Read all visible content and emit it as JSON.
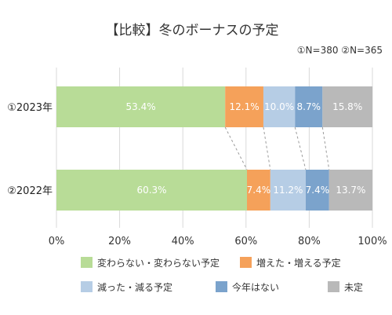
{
  "chart_data": {
    "type": "bar",
    "orientation": "horizontal",
    "stacked": true,
    "title": "【比較】冬のボーナスの予定",
    "subtitle": "①N=380  ②N=365",
    "categories": [
      "①2023年",
      "②2022年"
    ],
    "series": [
      {
        "name": "変わらない・変わらない予定",
        "values": [
          53.4,
          60.3
        ],
        "labels": [
          "53.4%",
          "60.3%"
        ],
        "color": "#b8dc97"
      },
      {
        "name": "増えた・増える予定",
        "values": [
          12.1,
          7.4
        ],
        "labels": [
          "12.1%",
          "7.4%"
        ],
        "color": "#f5a15a"
      },
      {
        "name": "減った・減る予定",
        "values": [
          10.0,
          11.2
        ],
        "labels": [
          "10.0%",
          "11.2%"
        ],
        "color": "#b6cde5"
      },
      {
        "name": "今年はない",
        "values": [
          8.7,
          7.4
        ],
        "labels": [
          "8.7%",
          "7.4%"
        ],
        "color": "#7ba3cc"
      },
      {
        "name": "未定",
        "values": [
          15.8,
          13.7
        ],
        "labels": [
          "15.8%",
          "13.7%"
        ],
        "color": "#b9b9b9"
      }
    ],
    "xlim": [
      0,
      100
    ],
    "xticks": [
      "0%",
      "20%",
      "40%",
      "60%",
      "80%",
      "100%"
    ],
    "grid": true,
    "legend_position": "bottom"
  }
}
